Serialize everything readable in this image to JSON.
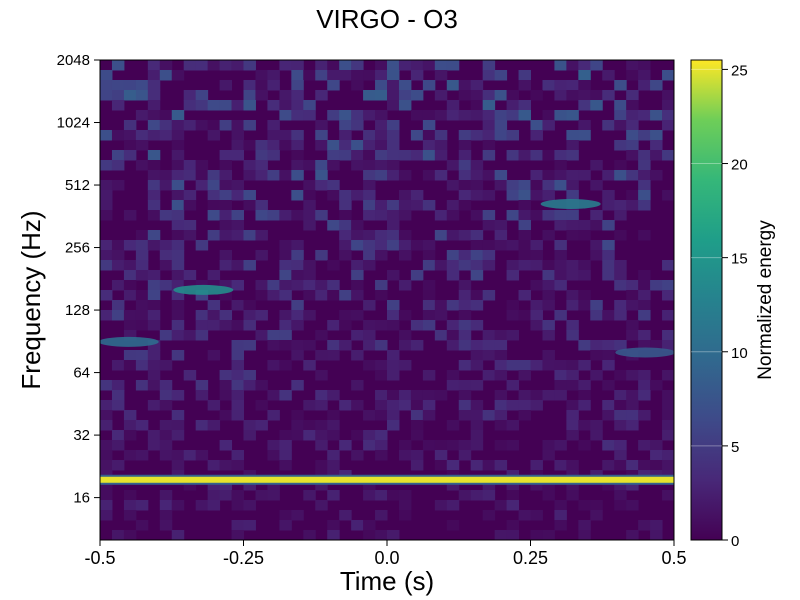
{
  "chart_data": {
    "type": "heatmap",
    "title": "VIRGO - O3",
    "xlabel": "Time (s)",
    "ylabel": "Frequency (Hz)",
    "x_ticks": [
      {
        "value": -0.5,
        "label": "-0.5"
      },
      {
        "value": -0.25,
        "label": "-0.25"
      },
      {
        "value": 0.0,
        "label": "0.0"
      },
      {
        "value": 0.25,
        "label": "0.25"
      },
      {
        "value": 0.5,
        "label": "0.5"
      }
    ],
    "y_ticks": [
      {
        "value": 16,
        "label": "16"
      },
      {
        "value": 32,
        "label": "32"
      },
      {
        "value": 64,
        "label": "64"
      },
      {
        "value": 128,
        "label": "128"
      },
      {
        "value": 256,
        "label": "256"
      },
      {
        "value": 512,
        "label": "512"
      },
      {
        "value": 1024,
        "label": "1024"
      },
      {
        "value": 2048,
        "label": "2048"
      }
    ],
    "xlim": [
      -0.5,
      0.5
    ],
    "ylim": [
      10,
      2048
    ],
    "y_scale": "log2",
    "colorbar": {
      "label": "Normalized energy",
      "range": [
        0,
        25.5
      ],
      "ticks": [
        {
          "value": 0,
          "label": "0"
        },
        {
          "value": 5,
          "label": "5"
        },
        {
          "value": 10,
          "label": "10"
        },
        {
          "value": 15,
          "label": "15"
        },
        {
          "value": 20,
          "label": "20"
        },
        {
          "value": 25,
          "label": "25"
        }
      ],
      "colormap": "viridis"
    },
    "features": [
      {
        "description": "persistent narrow line",
        "frequency_hz": 19.5,
        "time_range": [
          -0.5,
          0.5
        ],
        "energy": 25
      },
      {
        "description": "bright blob",
        "time_s": -0.32,
        "frequency_hz": 160,
        "energy": 14
      },
      {
        "description": "bright blob",
        "time_s": 0.32,
        "frequency_hz": 415,
        "energy": 12
      },
      {
        "description": "blob",
        "time_s": -0.45,
        "frequency_hz": 90,
        "energy": 10
      },
      {
        "description": "blob",
        "time_s": 0.45,
        "frequency_hz": 80,
        "energy": 8
      }
    ],
    "background_energy": "0-5 with noisy speckle, increasing slightly at high frequency",
    "grid": false,
    "colors": {
      "viridis_low": "#440154",
      "viridis_mid": "#21918c",
      "viridis_high": "#fde725"
    }
  }
}
